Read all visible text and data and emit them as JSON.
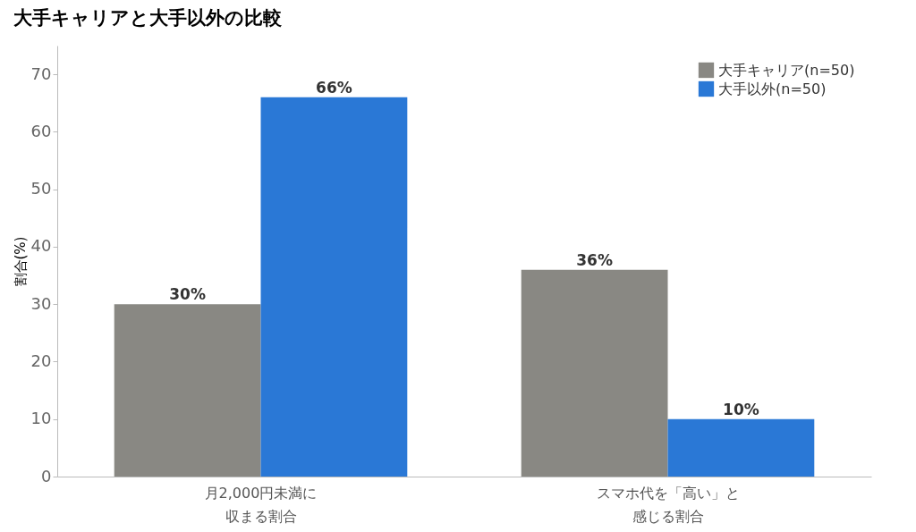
{
  "chart_data": {
    "type": "bar",
    "title": "大手キャリアと大手以外の比較",
    "ylabel": "割合(%)",
    "categories": [
      "月2,000円未満に収まる割合",
      "スマホ代を「高い」と感じる割合"
    ],
    "series": [
      {
        "name": "大手キャリア(n=50)",
        "color": "#898883",
        "values": [
          30,
          36
        ],
        "value_labels": [
          "30%",
          "36%"
        ]
      },
      {
        "name": "大手以外(n=50)",
        "color": "#2a78d6",
        "values": [
          66,
          10
        ],
        "value_labels": [
          "66%",
          "10%"
        ]
      }
    ],
    "ylim": [
      0,
      75
    ],
    "yticks": [
      0,
      10,
      20,
      30,
      40,
      50,
      60,
      70
    ],
    "grid": false,
    "legend": "top right"
  }
}
